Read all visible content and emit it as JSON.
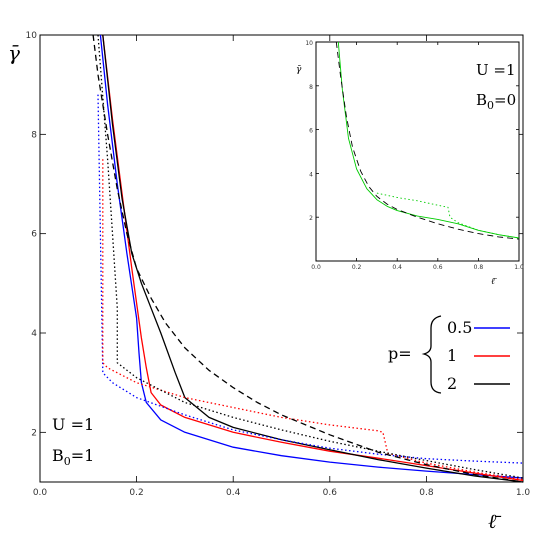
{
  "chart_data": {
    "type": "line",
    "xlabel": "ℓ̄",
    "ylabel": "γ̄",
    "xlim": [
      0,
      1
    ],
    "ylim": [
      1,
      10
    ],
    "xticks": [
      "0.0",
      "0.2",
      "0.4",
      "0.6",
      "0.8",
      "1.0"
    ],
    "yticks": [
      "2",
      "4",
      "6",
      "8",
      "10"
    ],
    "annotation": {
      "line1": "U =1",
      "line2": "B",
      "sub": "0",
      "rest": "=1"
    },
    "legend": {
      "prefix": "p=",
      "entries": [
        {
          "label": "0.5",
          "color": "#0000ff"
        },
        {
          "label": "1",
          "color": "#ff0000"
        },
        {
          "label": "2",
          "color": "#000000"
        }
      ]
    },
    "series": [
      {
        "name": "0.5",
        "style": "solid",
        "color": "#0000ff",
        "x": [
          0.125,
          0.14,
          0.16,
          0.18,
          0.2,
          0.205,
          0.21,
          0.22,
          0.25,
          0.3,
          0.4,
          0.5,
          0.6,
          0.7,
          0.8,
          0.9,
          1.0
        ],
        "y": [
          10,
          8.6,
          7.0,
          5.6,
          4.3,
          3.6,
          3.0,
          2.6,
          2.25,
          2.0,
          1.7,
          1.53,
          1.4,
          1.3,
          1.22,
          1.15,
          1.08
        ]
      },
      {
        "name": "1",
        "style": "solid",
        "color": "#ff0000",
        "x": [
          0.13,
          0.15,
          0.17,
          0.19,
          0.21,
          0.22,
          0.23,
          0.25,
          0.3,
          0.4,
          0.5,
          0.6,
          0.7,
          0.8,
          0.9,
          1.0
        ],
        "y": [
          10,
          8.3,
          6.8,
          5.3,
          3.9,
          3.3,
          2.8,
          2.55,
          2.3,
          2.0,
          1.8,
          1.62,
          1.48,
          1.33,
          1.18,
          1.03
        ]
      },
      {
        "name": "2",
        "style": "solid",
        "color": "#000000",
        "x": [
          0.13,
          0.15,
          0.17,
          0.19,
          0.21,
          0.23,
          0.25,
          0.28,
          0.3,
          0.35,
          0.4,
          0.5,
          0.6,
          0.7,
          0.8,
          0.9,
          1.0
        ],
        "y": [
          10,
          8.2,
          6.7,
          5.6,
          5.0,
          4.5,
          4.0,
          3.2,
          2.7,
          2.3,
          2.1,
          1.85,
          1.65,
          1.45,
          1.28,
          1.12,
          0.98
        ]
      },
      {
        "name": "",
        "style": "dotted",
        "color": "#0000ff",
        "x": [
          0.12,
          0.13,
          0.15,
          0.2,
          0.3,
          0.4,
          0.5,
          0.6,
          0.7,
          0.8,
          0.9,
          1.0
        ],
        "y": [
          8.8,
          3.2,
          3.0,
          2.7,
          2.35,
          2.05,
          1.85,
          1.68,
          1.56,
          1.47,
          1.42,
          1.38
        ]
      },
      {
        "name": "",
        "style": "dotted",
        "color": "#ff0000",
        "x": [
          0.13,
          0.13,
          0.14,
          0.2,
          0.3,
          0.4,
          0.5,
          0.6,
          0.7,
          0.71,
          0.72,
          0.8,
          0.9,
          1.0
        ],
        "y": [
          7.5,
          3.4,
          3.3,
          3.0,
          2.7,
          2.5,
          2.3,
          2.15,
          2.03,
          2.0,
          1.58,
          1.38,
          1.2,
          1.05
        ]
      },
      {
        "name": "",
        "style": "dotted",
        "color": "#000000",
        "x": [
          0.12,
          0.14,
          0.15,
          0.16,
          0.16,
          0.2,
          0.3,
          0.4,
          0.5,
          0.6,
          0.7,
          0.8,
          0.9,
          1.0
        ],
        "y": [
          10,
          7.5,
          6.0,
          4.5,
          3.4,
          3.1,
          2.6,
          2.3,
          2.05,
          1.82,
          1.62,
          1.43,
          1.25,
          1.08
        ]
      },
      {
        "name": "",
        "style": "dashed",
        "color": "#000000",
        "x": [
          0.11,
          0.12,
          0.14,
          0.16,
          0.18,
          0.2,
          0.23,
          0.26,
          0.3,
          0.35,
          0.4,
          0.45,
          0.5,
          0.6,
          0.7,
          0.8,
          0.9,
          1.0
        ],
        "y": [
          10,
          9.2,
          8.0,
          6.9,
          6.0,
          5.3,
          4.7,
          4.2,
          3.7,
          3.25,
          2.9,
          2.6,
          2.35,
          1.95,
          1.6,
          1.35,
          1.15,
          1.0
        ]
      }
    ],
    "inset": {
      "xlabel": "ℓ̄",
      "ylabel": "γ̄",
      "xlim": [
        0,
        1
      ],
      "ylim": [
        0,
        10
      ],
      "xticks": [
        "0.0",
        "0.2",
        "0.4",
        "0.6",
        "0.8",
        "1.0"
      ],
      "yticks": [
        "2",
        "4",
        "6",
        "8",
        "10"
      ],
      "annotation": {
        "line1": "U =1",
        "line2": "B",
        "sub": "0",
        "rest": "=0"
      },
      "series": [
        {
          "name": "",
          "style": "solid",
          "color": "#00cc00",
          "x": [
            0.11,
            0.13,
            0.16,
            0.2,
            0.25,
            0.3,
            0.35,
            0.4,
            0.5,
            0.6,
            0.7,
            0.8,
            0.9,
            1.0
          ],
          "y": [
            10,
            7.8,
            5.6,
            4.2,
            3.3,
            2.8,
            2.5,
            2.3,
            2.05,
            1.9,
            1.7,
            1.4,
            1.2,
            1.05
          ]
        },
        {
          "name": "",
          "style": "dotted",
          "color": "#00cc00",
          "x": [
            0.3,
            0.4,
            0.5,
            0.6,
            0.65,
            0.66,
            0.7,
            0.8,
            0.9,
            1.0
          ],
          "y": [
            3.1,
            2.9,
            2.75,
            2.55,
            2.45,
            2.0,
            1.75,
            1.4,
            1.2,
            1.05
          ]
        },
        {
          "name": "",
          "style": "dashed",
          "color": "#000000",
          "x": [
            0.1,
            0.12,
            0.15,
            0.18,
            0.22,
            0.26,
            0.3,
            0.35,
            0.4,
            0.5,
            0.6,
            0.7,
            0.8,
            0.9,
            1.0
          ],
          "y": [
            10,
            8.5,
            6.6,
            5.2,
            4.1,
            3.4,
            2.95,
            2.6,
            2.35,
            2.0,
            1.7,
            1.45,
            1.25,
            1.1,
            1.0
          ]
        }
      ]
    }
  }
}
